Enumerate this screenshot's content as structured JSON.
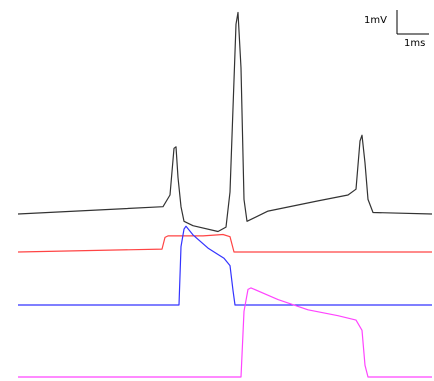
{
  "chart_data": {
    "type": "line",
    "title": "",
    "xlabel": "",
    "ylabel": "",
    "grid": false,
    "legend": "none",
    "scale_bar": {
      "voltage_label": "1mV",
      "time_label": "1ms",
      "voltage_mV": 1,
      "time_ms": 1
    },
    "xlim": [
      0,
      414
    ],
    "series": [
      {
        "color": "#333333",
        "baseline": 0,
        "points": [
          [
            0,
            0
          ],
          [
            145,
            0.5
          ],
          [
            152,
            1.3
          ],
          [
            156,
            4.5
          ],
          [
            158,
            4.6
          ],
          [
            160,
            2.5
          ],
          [
            163,
            0.5
          ],
          [
            166,
            -0.5
          ],
          [
            175,
            -0.8
          ],
          [
            200,
            -1.2
          ],
          [
            208,
            -0.9
          ],
          [
            212,
            1.5
          ],
          [
            218,
            13
          ],
          [
            220,
            13.8
          ],
          [
            223,
            10
          ],
          [
            226,
            1.0
          ],
          [
            229,
            -0.5
          ],
          [
            250,
            0.2
          ],
          [
            300,
            0.9
          ],
          [
            330,
            1.3
          ],
          [
            338,
            1.7
          ],
          [
            342,
            5.0
          ],
          [
            344,
            5.4
          ],
          [
            347,
            3.5
          ],
          [
            350,
            1.0
          ],
          [
            355,
            0.1
          ],
          [
            414,
            0
          ]
        ]
      },
      {
        "color": "#ff4444",
        "baseline": 0,
        "points": [
          [
            0,
            0
          ],
          [
            144,
            0.2
          ],
          [
            147,
            1.0
          ],
          [
            150,
            1.1
          ],
          [
            185,
            1.1
          ],
          [
            205,
            1.2
          ],
          [
            212,
            1.05
          ],
          [
            216,
            0
          ],
          [
            414,
            0
          ]
        ]
      },
      {
        "color": "#3333ff",
        "baseline": 0,
        "points": [
          [
            0,
            0
          ],
          [
            161,
            0
          ],
          [
            163,
            4.0
          ],
          [
            166,
            5.2
          ],
          [
            168,
            5.4
          ],
          [
            175,
            4.8
          ],
          [
            190,
            3.9
          ],
          [
            206,
            3.2
          ],
          [
            212,
            2.7
          ],
          [
            215,
            1.0
          ],
          [
            217,
            0
          ],
          [
            414,
            0
          ]
        ]
      },
      {
        "color": "#ff44ff",
        "baseline": 0,
        "points": [
          [
            0,
            0
          ],
          [
            223,
            0
          ],
          [
            226,
            4.5
          ],
          [
            230,
            6.0
          ],
          [
            233,
            6.1
          ],
          [
            260,
            5.3
          ],
          [
            290,
            4.6
          ],
          [
            320,
            4.2
          ],
          [
            338,
            3.9
          ],
          [
            344,
            3.2
          ],
          [
            347,
            0.8
          ],
          [
            350,
            0
          ],
          [
            414,
            0
          ]
        ]
      }
    ]
  }
}
